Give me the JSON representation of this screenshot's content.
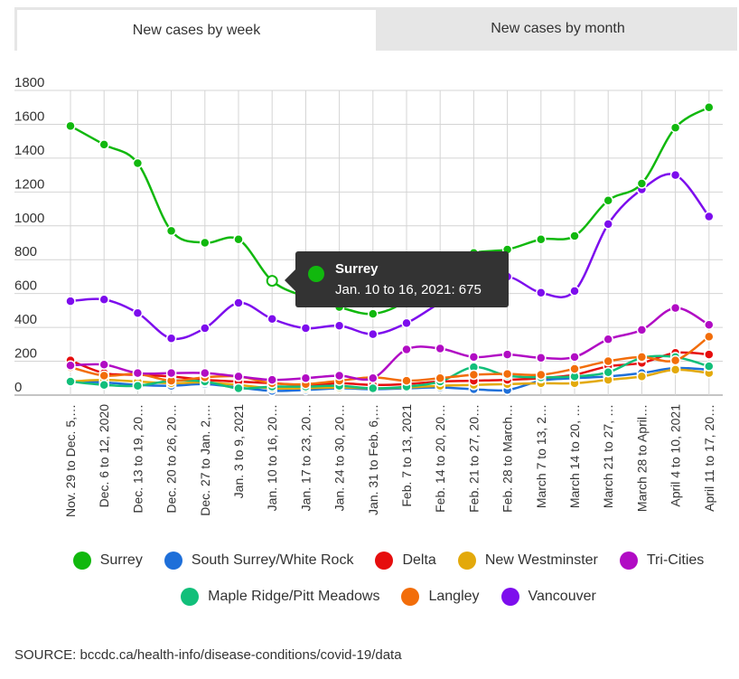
{
  "tabs": [
    {
      "label": "New cases by week",
      "active": true
    },
    {
      "label": "New cases by month",
      "active": false
    }
  ],
  "tooltip": {
    "series": "Surrey",
    "text": "Jan. 10 to 16, 2021: 675",
    "color": "#11b80e"
  },
  "source": "SOURCE: bccdc.ca/health-info/disease-conditions/covid-19/data",
  "chart_data": {
    "type": "line",
    "grid": true,
    "ylim": [
      0,
      1800
    ],
    "yticks": [
      0,
      200,
      400,
      600,
      800,
      1000,
      1200,
      1400,
      1600,
      1800
    ],
    "categories": [
      "Nov. 29 to Dec. 5,…",
      "Dec. 6 to 12, 2020",
      "Dec. 13 to 19, 20…",
      "Dec. 20 to 26, 20…",
      "Dec. 27 to Jan. 2,…",
      "Jan. 3 to 9, 2021",
      "Jan. 10 to 16, 20…",
      "Jan. 17 to 23, 20…",
      "Jan. 24 to 30, 20…",
      "Jan. 31 to Feb. 6,…",
      "Feb. 7 to 13, 2021",
      "Feb. 14 to 20, 20…",
      "Feb. 21 to 27, 20…",
      "Feb. 28 to March…",
      "March 7 to 13, 2…",
      "March 14 to 20, …",
      "March 21 to 27, …",
      "March 28 to April…",
      "April 4 to 10, 2021",
      "April 11 to 17, 20…"
    ],
    "series": [
      {
        "name": "Surrey",
        "color": "#11b80e",
        "values": [
          1590,
          1480,
          1370,
          970,
          900,
          920,
          675,
          580,
          520,
          480,
          560,
          760,
          840,
          860,
          920,
          940,
          1150,
          1250,
          1580,
          1700
        ]
      },
      {
        "name": "South Surrey/White Rock",
        "color": "#1e6fd9",
        "values": [
          80,
          75,
          60,
          55,
          65,
          45,
          25,
          30,
          40,
          35,
          40,
          45,
          35,
          30,
          85,
          100,
          110,
          130,
          160,
          150
        ]
      },
      {
        "name": "Delta",
        "color": "#e60e0e",
        "values": [
          205,
          130,
          120,
          110,
          90,
          80,
          70,
          60,
          70,
          60,
          65,
          80,
          85,
          90,
          100,
          120,
          170,
          190,
          250,
          240
        ]
      },
      {
        "name": "New Westminster",
        "color": "#e3a90b",
        "values": [
          80,
          90,
          80,
          70,
          75,
          60,
          40,
          40,
          45,
          40,
          45,
          55,
          60,
          65,
          70,
          70,
          90,
          110,
          150,
          130
        ]
      },
      {
        "name": "Tri-Cities",
        "color": "#b10cc4",
        "values": [
          175,
          180,
          130,
          130,
          130,
          110,
          90,
          100,
          115,
          100,
          270,
          275,
          225,
          240,
          220,
          225,
          330,
          385,
          515,
          415
        ]
      },
      {
        "name": "Maple Ridge/Pitt Meadows",
        "color": "#12bf7a",
        "values": [
          80,
          60,
          55,
          85,
          80,
          40,
          50,
          50,
          55,
          40,
          50,
          80,
          165,
          115,
          105,
          110,
          135,
          220,
          225,
          170
        ]
      },
      {
        "name": "Langley",
        "color": "#f26d0a",
        "values": [
          165,
          115,
          125,
          85,
          105,
          110,
          70,
          65,
          85,
          105,
          85,
          100,
          120,
          125,
          120,
          155,
          200,
          225,
          205,
          345
        ]
      },
      {
        "name": "Vancouver",
        "color": "#7d0ded",
        "values": [
          555,
          565,
          485,
          335,
          395,
          545,
          450,
          395,
          410,
          360,
          425,
          545,
          650,
          700,
          605,
          615,
          1010,
          1215,
          1300,
          1055
        ]
      }
    ]
  },
  "legend": {
    "rows": [
      [
        {
          "label": "Surrey",
          "color": "#11b80e"
        },
        {
          "label": "South Surrey/White Rock",
          "color": "#1e6fd9"
        },
        {
          "label": "Delta",
          "color": "#e60e0e"
        },
        {
          "label": "New Westminster",
          "color": "#e3a90b"
        },
        {
          "label": "Tri-Cities",
          "color": "#b10cc4"
        }
      ],
      [
        {
          "label": "Maple Ridge/Pitt Meadows",
          "color": "#12bf7a"
        },
        {
          "label": "Langley",
          "color": "#f26d0a"
        },
        {
          "label": "Vancouver",
          "color": "#7d0ded"
        }
      ]
    ]
  }
}
